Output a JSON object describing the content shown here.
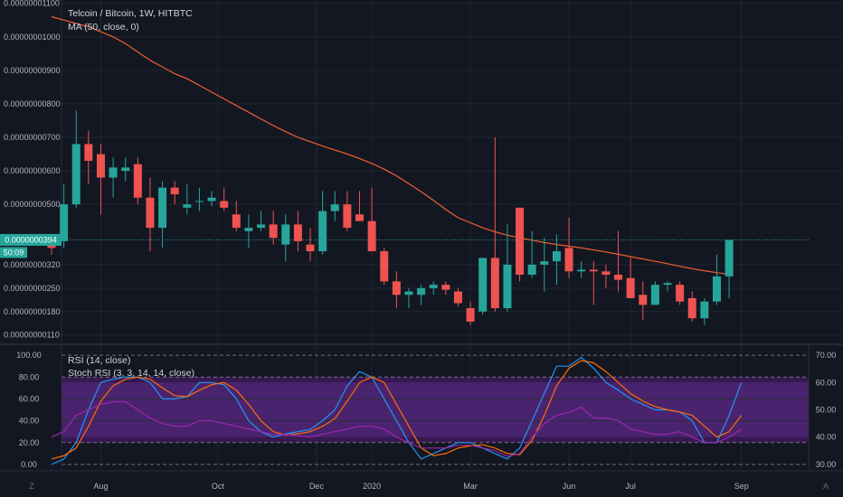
{
  "chart_data": [
    {
      "type": "candlestick",
      "title": "Telcoin / Bitcoin, 1W, HITBTC",
      "series_label": "MA (50, close, 0)",
      "price_label": "0.0000000394",
      "timer_label": "50:09",
      "ylim": [
        8.5e-10,
        1.11e-08
      ],
      "y_ticks": [
        "0.00000001100",
        "0.00000001000",
        "0.00000000900",
        "0.00000000800",
        "0.00000000700",
        "0.00000000600",
        "0.00000000500",
        "0.00000000320",
        "0.00000000250",
        "0.00000000180",
        "0.00000000110"
      ],
      "y_tick_values": [
        11.0,
        10.0,
        9.0,
        8.0,
        7.0,
        6.0,
        5.0,
        3.2,
        2.5,
        1.8,
        1.1
      ],
      "x_labels": [
        "Aug",
        "Oct",
        "Dec",
        "2020",
        "Mar",
        "Jun",
        "Jul",
        "Sep"
      ],
      "x_label_weeks": [
        4,
        13.5,
        21.5,
        26,
        34,
        42,
        47,
        56
      ],
      "candles": [
        {
          "o": 3.9,
          "h": 3.95,
          "l": 3.5,
          "c": 3.7
        },
        {
          "o": 3.9,
          "h": 5.6,
          "l": 3.7,
          "c": 5.0
        },
        {
          "o": 5.0,
          "h": 7.8,
          "l": 4.9,
          "c": 6.8
        },
        {
          "o": 6.8,
          "h": 7.2,
          "l": 5.6,
          "c": 6.3
        },
        {
          "o": 6.5,
          "h": 6.8,
          "l": 4.7,
          "c": 5.8
        },
        {
          "o": 5.8,
          "h": 6.4,
          "l": 5.2,
          "c": 6.1
        },
        {
          "o": 6.0,
          "h": 6.4,
          "l": 5.7,
          "c": 6.1
        },
        {
          "o": 6.2,
          "h": 6.4,
          "l": 5.0,
          "c": 5.2
        },
        {
          "o": 5.2,
          "h": 5.8,
          "l": 3.6,
          "c": 4.3
        },
        {
          "o": 4.3,
          "h": 5.7,
          "l": 3.7,
          "c": 5.5
        },
        {
          "o": 5.5,
          "h": 5.7,
          "l": 5.0,
          "c": 5.3
        },
        {
          "o": 4.9,
          "h": 5.6,
          "l": 4.7,
          "c": 5.0
        },
        {
          "o": 5.1,
          "h": 5.5,
          "l": 4.8,
          "c": 5.1
        },
        {
          "o": 5.1,
          "h": 5.4,
          "l": 4.95,
          "c": 5.2
        },
        {
          "o": 5.1,
          "h": 5.5,
          "l": 4.8,
          "c": 4.9
        },
        {
          "o": 4.7,
          "h": 5.1,
          "l": 4.2,
          "c": 4.3
        },
        {
          "o": 4.2,
          "h": 4.7,
          "l": 3.7,
          "c": 4.3
        },
        {
          "o": 4.3,
          "h": 4.8,
          "l": 4.2,
          "c": 4.4
        },
        {
          "o": 4.4,
          "h": 4.8,
          "l": 3.8,
          "c": 4.0
        },
        {
          "o": 3.8,
          "h": 4.7,
          "l": 3.3,
          "c": 4.4
        },
        {
          "o": 4.4,
          "h": 4.8,
          "l": 3.6,
          "c": 3.9
        },
        {
          "o": 3.8,
          "h": 4.3,
          "l": 3.3,
          "c": 3.6
        },
        {
          "o": 3.6,
          "h": 5.4,
          "l": 3.5,
          "c": 4.8
        },
        {
          "o": 4.8,
          "h": 5.4,
          "l": 4.5,
          "c": 5.0
        },
        {
          "o": 5.0,
          "h": 5.4,
          "l": 4.2,
          "c": 4.3
        },
        {
          "o": 4.7,
          "h": 5.4,
          "l": 4.5,
          "c": 4.5
        },
        {
          "o": 4.5,
          "h": 5.5,
          "l": 3.6,
          "c": 3.6
        },
        {
          "o": 3.6,
          "h": 3.7,
          "l": 2.6,
          "c": 2.7
        },
        {
          "o": 2.7,
          "h": 3.0,
          "l": 1.9,
          "c": 2.3
        },
        {
          "o": 2.3,
          "h": 2.5,
          "l": 1.9,
          "c": 2.4
        },
        {
          "o": 2.3,
          "h": 2.6,
          "l": 2.0,
          "c": 2.5
        },
        {
          "o": 2.5,
          "h": 2.7,
          "l": 2.3,
          "c": 2.6
        },
        {
          "o": 2.6,
          "h": 2.7,
          "l": 2.3,
          "c": 2.45
        },
        {
          "o": 2.4,
          "h": 2.5,
          "l": 1.95,
          "c": 2.05
        },
        {
          "o": 1.9,
          "h": 2.1,
          "l": 1.4,
          "c": 1.5
        },
        {
          "o": 1.8,
          "h": 3.4,
          "l": 1.7,
          "c": 3.4
        },
        {
          "o": 3.4,
          "h": 7.0,
          "l": 1.8,
          "c": 1.9
        },
        {
          "o": 1.9,
          "h": 4.4,
          "l": 1.8,
          "c": 3.2
        },
        {
          "o": 4.9,
          "h": 4.9,
          "l": 2.7,
          "c": 2.9
        },
        {
          "o": 2.9,
          "h": 4.2,
          "l": 2.8,
          "c": 3.2
        },
        {
          "o": 3.2,
          "h": 4.0,
          "l": 2.4,
          "c": 3.3
        },
        {
          "o": 3.3,
          "h": 4.1,
          "l": 2.6,
          "c": 3.6
        },
        {
          "o": 3.7,
          "h": 4.6,
          "l": 2.8,
          "c": 3.0
        },
        {
          "o": 3.0,
          "h": 3.3,
          "l": 2.8,
          "c": 3.05
        },
        {
          "o": 3.05,
          "h": 3.3,
          "l": 2.0,
          "c": 3.0
        },
        {
          "o": 3.0,
          "h": 3.2,
          "l": 2.5,
          "c": 2.9
        },
        {
          "o": 2.9,
          "h": 4.2,
          "l": 2.4,
          "c": 2.75
        },
        {
          "o": 2.8,
          "h": 3.4,
          "l": 2.2,
          "c": 2.2
        },
        {
          "o": 2.3,
          "h": 2.7,
          "l": 1.55,
          "c": 2.0
        },
        {
          "o": 2.0,
          "h": 2.7,
          "l": 2.0,
          "c": 2.6
        },
        {
          "o": 2.6,
          "h": 2.7,
          "l": 2.4,
          "c": 2.65
        },
        {
          "o": 2.6,
          "h": 2.7,
          "l": 2.0,
          "c": 2.1
        },
        {
          "o": 2.2,
          "h": 2.4,
          "l": 1.5,
          "c": 1.6
        },
        {
          "o": 1.6,
          "h": 2.2,
          "l": 1.4,
          "c": 2.1
        },
        {
          "o": 2.1,
          "h": 3.5,
          "l": 2.0,
          "c": 2.85
        },
        {
          "o": 2.85,
          "h": 3.94,
          "l": 2.2,
          "c": 3.94
        }
      ],
      "ma": [
        10.6,
        10.5,
        10.4,
        10.3,
        10.15,
        10.0,
        9.8,
        9.55,
        9.3,
        9.1,
        8.9,
        8.75,
        8.55,
        8.35,
        8.15,
        7.95,
        7.75,
        7.55,
        7.35,
        7.17,
        7.0,
        6.87,
        6.74,
        6.62,
        6.5,
        6.37,
        6.22,
        6.05,
        5.85,
        5.62,
        5.38,
        5.12,
        4.85,
        4.6,
        4.45,
        4.3,
        4.18,
        4.08,
        4.0,
        3.93,
        3.86,
        3.8,
        3.75,
        3.7,
        3.64,
        3.58,
        3.51,
        3.44,
        3.37,
        3.3,
        3.23,
        3.15,
        3.08,
        3.02,
        2.96,
        2.92
      ]
    },
    {
      "type": "line",
      "title": "RSI (14, close)",
      "subtitle": "Stoch RSI (3, 3, 14, 14, close)",
      "ylim": [
        -5,
        110
      ],
      "left_ticks": [
        "100.00",
        "80.00",
        "60.00",
        "40.00",
        "20.00",
        "0.00"
      ],
      "left_tick_values": [
        100,
        80,
        60,
        40,
        20,
        0
      ],
      "right_ticks": [
        "70.00",
        "60.00",
        "50.00",
        "40.00",
        "30.00"
      ],
      "right_tick_values": [
        70,
        60,
        50,
        40,
        30
      ],
      "series": [
        {
          "name": "K",
          "values": [
            0,
            5,
            20,
            50,
            75,
            78,
            80,
            80,
            75,
            60,
            60,
            62,
            75,
            75,
            73,
            60,
            40,
            30,
            25,
            28,
            30,
            32,
            40,
            50,
            72,
            85,
            80,
            60,
            40,
            20,
            5,
            10,
            15,
            20,
            20,
            15,
            10,
            5,
            15,
            40,
            65,
            90,
            90,
            98,
            88,
            75,
            68,
            60,
            55,
            50,
            50,
            48,
            40,
            20,
            20,
            45,
            75
          ]
        },
        {
          "name": "D",
          "values": [
            5,
            8,
            15,
            35,
            58,
            72,
            78,
            80,
            78,
            70,
            63,
            62,
            68,
            73,
            75,
            68,
            55,
            40,
            30,
            27,
            28,
            30,
            35,
            42,
            58,
            75,
            80,
            75,
            55,
            35,
            15,
            8,
            10,
            15,
            17,
            18,
            15,
            10,
            9,
            22,
            45,
            72,
            88,
            95,
            93,
            85,
            75,
            65,
            58,
            53,
            50,
            48,
            45,
            35,
            25,
            30,
            45
          ]
        },
        {
          "name": "RSI",
          "values": [
            40,
            42,
            48,
            50,
            52,
            53,
            53,
            50,
            47,
            45,
            44,
            44,
            46,
            46,
            45,
            44,
            43,
            42,
            41,
            41,
            40.5,
            40,
            41,
            42,
            43,
            44,
            44,
            43,
            40,
            38,
            36,
            36,
            36,
            37,
            37,
            36,
            35,
            33,
            34,
            40,
            45,
            48,
            49,
            51,
            47,
            47,
            46,
            43,
            42,
            41,
            41,
            42,
            40,
            38,
            38,
            40,
            43
          ]
        }
      ]
    }
  ]
}
